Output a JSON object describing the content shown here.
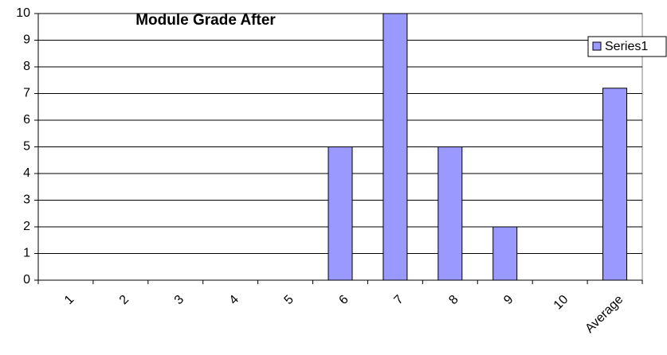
{
  "chart_data": {
    "type": "bar",
    "title": "Module Grade After",
    "categories": [
      "1",
      "2",
      "3",
      "4",
      "5",
      "6",
      "7",
      "8",
      "9",
      "10",
      "Average"
    ],
    "series": [
      {
        "name": "Series1",
        "color": "#9999ff",
        "values": [
          0,
          0,
          0,
          0,
          0,
          5,
          10,
          5,
          2,
          0,
          7.2
        ]
      }
    ],
    "ylim": [
      0,
      10
    ],
    "yticks": [
      0,
      1,
      2,
      3,
      4,
      5,
      6,
      7,
      8,
      9,
      10
    ],
    "grid": true,
    "legend": "right"
  }
}
